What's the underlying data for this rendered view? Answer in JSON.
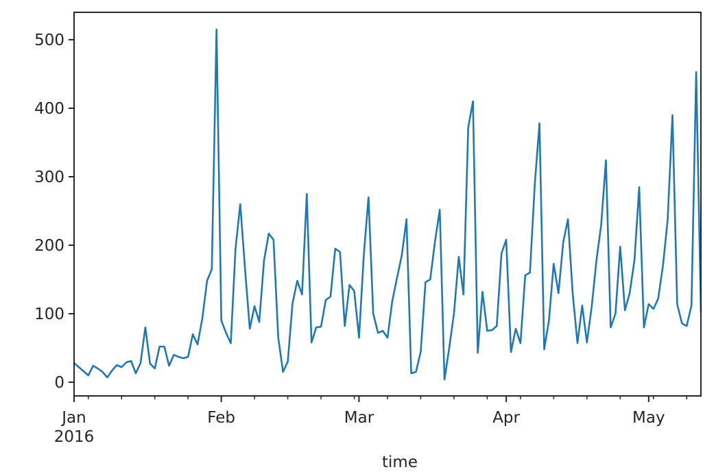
{
  "chart_data": {
    "type": "line",
    "title": "",
    "xlabel": "time",
    "ylabel": "",
    "x_start": "2016-01-01",
    "x_end": "2016-05-12",
    "x_ticks": [
      {
        "date": "2016-01-01",
        "label": "Jan",
        "sublabel": "2016"
      },
      {
        "date": "2016-02-01",
        "label": "Feb"
      },
      {
        "date": "2016-03-01",
        "label": "Mar"
      },
      {
        "date": "2016-04-01",
        "label": "Apr"
      },
      {
        "date": "2016-05-01",
        "label": "May"
      }
    ],
    "y_ticks": [
      0,
      100,
      200,
      300,
      400,
      500
    ],
    "ylim": [
      -20,
      540
    ],
    "grid": false,
    "series_color": "#1f77b4",
    "x": [
      "2016-01-01",
      "2016-01-02",
      "2016-01-03",
      "2016-01-04",
      "2016-01-05",
      "2016-01-06",
      "2016-01-07",
      "2016-01-08",
      "2016-01-09",
      "2016-01-10",
      "2016-01-11",
      "2016-01-12",
      "2016-01-13",
      "2016-01-14",
      "2016-01-15",
      "2016-01-16",
      "2016-01-17",
      "2016-01-18",
      "2016-01-19",
      "2016-01-20",
      "2016-01-21",
      "2016-01-22",
      "2016-01-23",
      "2016-01-24",
      "2016-01-25",
      "2016-01-26",
      "2016-01-27",
      "2016-01-28",
      "2016-01-29",
      "2016-01-30",
      "2016-01-31",
      "2016-02-01",
      "2016-02-02",
      "2016-02-03",
      "2016-02-04",
      "2016-02-05",
      "2016-02-06",
      "2016-02-07",
      "2016-02-08",
      "2016-02-09",
      "2016-02-10",
      "2016-02-11",
      "2016-02-12",
      "2016-02-13",
      "2016-02-14",
      "2016-02-15",
      "2016-02-16",
      "2016-02-17",
      "2016-02-18",
      "2016-02-19",
      "2016-02-20",
      "2016-02-21",
      "2016-02-22",
      "2016-02-23",
      "2016-02-24",
      "2016-02-25",
      "2016-02-26",
      "2016-02-27",
      "2016-02-28",
      "2016-02-29",
      "2016-03-01",
      "2016-03-02",
      "2016-03-03",
      "2016-03-04",
      "2016-03-05",
      "2016-03-06",
      "2016-03-07",
      "2016-03-08",
      "2016-03-09",
      "2016-03-10",
      "2016-03-11",
      "2016-03-12",
      "2016-03-13",
      "2016-03-14",
      "2016-03-15",
      "2016-03-16",
      "2016-03-17",
      "2016-03-18",
      "2016-03-19",
      "2016-03-20",
      "2016-03-21",
      "2016-03-22",
      "2016-03-23",
      "2016-03-24",
      "2016-03-25",
      "2016-03-26",
      "2016-03-27",
      "2016-03-28",
      "2016-03-29",
      "2016-03-30",
      "2016-03-31",
      "2016-04-01",
      "2016-04-02",
      "2016-04-03",
      "2016-04-04",
      "2016-04-05",
      "2016-04-06",
      "2016-04-07",
      "2016-04-08",
      "2016-04-09",
      "2016-04-10",
      "2016-04-11",
      "2016-04-12",
      "2016-04-13",
      "2016-04-14",
      "2016-04-15",
      "2016-04-16",
      "2016-04-17",
      "2016-04-18",
      "2016-04-19",
      "2016-04-20",
      "2016-04-21",
      "2016-04-22",
      "2016-04-23",
      "2016-04-24",
      "2016-04-25",
      "2016-04-26",
      "2016-04-27",
      "2016-04-28",
      "2016-04-29",
      "2016-04-30",
      "2016-05-01",
      "2016-05-02",
      "2016-05-03",
      "2016-05-04",
      "2016-05-05",
      "2016-05-06",
      "2016-05-07",
      "2016-05-08",
      "2016-05-09",
      "2016-05-10",
      "2016-05-11",
      "2016-05-12"
    ],
    "values": [
      28,
      22,
      16,
      10,
      24,
      20,
      15,
      7,
      17,
      25,
      22,
      29,
      31,
      13,
      28,
      80,
      27,
      20,
      52,
      52,
      24,
      40,
      37,
      35,
      37,
      70,
      55,
      93,
      148,
      165,
      515,
      90,
      72,
      57,
      195,
      260,
      165,
      78,
      111,
      88,
      178,
      217,
      208,
      65,
      15,
      30,
      115,
      148,
      128,
      275,
      58,
      80,
      81,
      120,
      125,
      195,
      190,
      82,
      142,
      133,
      65,
      185,
      270,
      100,
      72,
      75,
      65,
      118,
      152,
      185,
      238,
      13,
      15,
      45,
      146,
      150,
      205,
      252,
      4,
      50,
      100,
      183,
      128,
      372,
      410,
      43,
      132,
      75,
      76,
      82,
      188,
      208,
      44,
      78,
      57,
      156,
      160,
      288,
      378,
      48,
      90,
      173,
      130,
      204,
      238,
      130,
      57,
      112,
      58,
      110,
      178,
      230,
      324,
      80,
      100,
      198,
      105,
      130,
      178,
      285,
      80,
      114,
      107,
      122,
      170,
      237,
      390,
      114,
      86,
      82,
      112,
      453,
      102
    ]
  }
}
